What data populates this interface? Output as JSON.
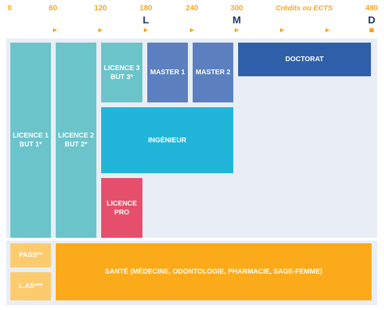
{
  "axis": {
    "ticks": [
      "0",
      "60",
      "120",
      "180",
      "240",
      "300",
      "Crédits ou ECTS",
      "480"
    ],
    "levels": [
      "L",
      "M",
      "D"
    ]
  },
  "boxes": {
    "licence1": "LICENCE 1\nBUT 1*",
    "licence2": "LICENCE 2\nBUT 2*",
    "licence3": "LICENCE 3\nBUT 3*",
    "master1": "MASTER 1",
    "master2": "MASTER 2",
    "doctorat": "DOCTORAT",
    "ingenieur": "INGÉNIEUR",
    "licence_pro": "LICENCE\nPRO",
    "pass": "PASS**",
    "las": "L.AS***",
    "sante": "SANTÉ (MÉDECINE, ODONTOLOGIE, PHARMACIE, SAGE-FEMME)"
  },
  "colors": {
    "accent": "#f5a623",
    "level_letters": "#1f3a63",
    "panel_background": "#e9eef6",
    "licence": "#6cc4cb",
    "master": "#5b7fbf",
    "doctorat": "#2f5fa8",
    "ingenieur": "#22b5da",
    "licence_pro": "#e64f6b",
    "sante": "#fbaa19",
    "pass_las": "#fbcb6e"
  }
}
